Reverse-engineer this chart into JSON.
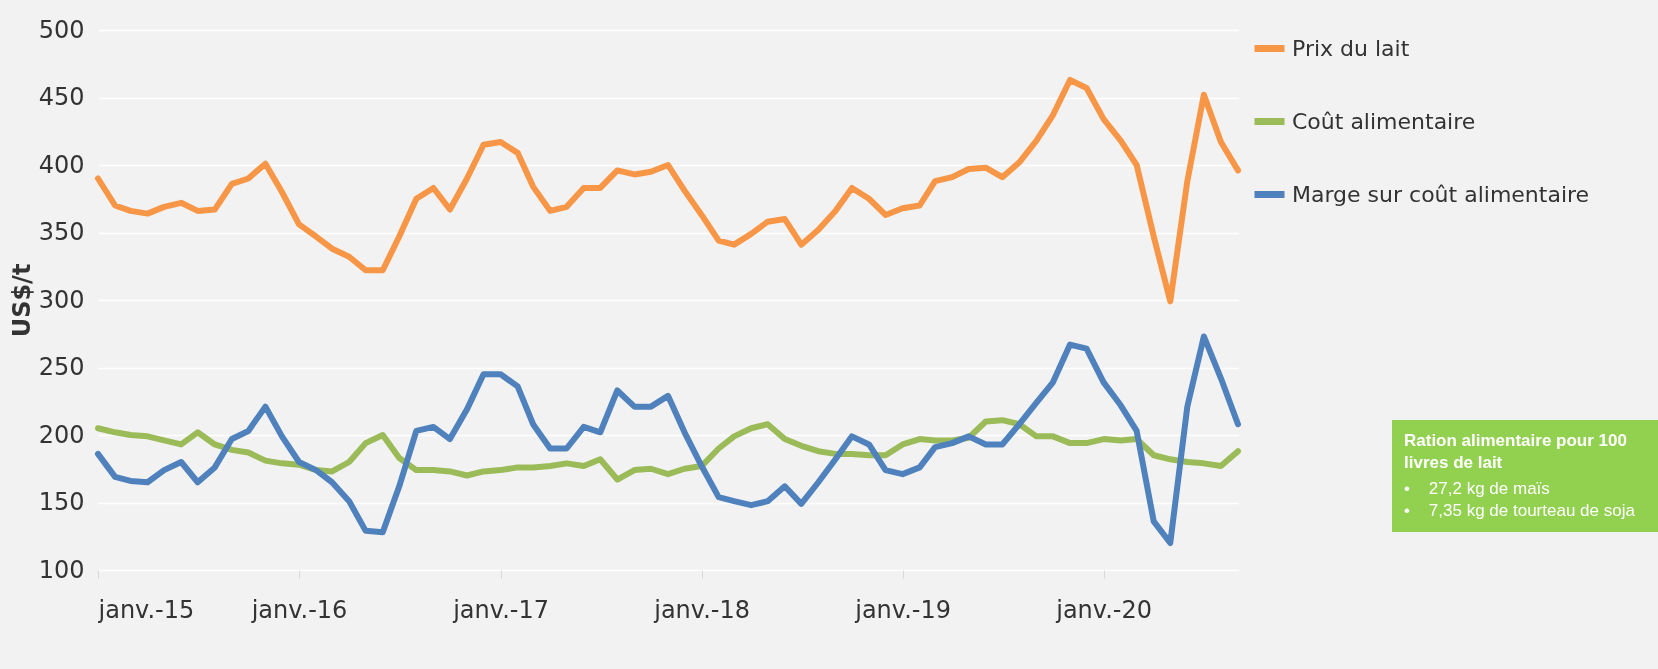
{
  "chart_data": {
    "type": "line",
    "ylabel": "US$/t",
    "x": [
      "2015-01",
      "2015-02",
      "2015-03",
      "2015-04",
      "2015-05",
      "2015-06",
      "2015-07",
      "2015-08",
      "2015-09",
      "2015-10",
      "2015-11",
      "2015-12",
      "2016-01",
      "2016-02",
      "2016-03",
      "2016-04",
      "2016-05",
      "2016-06",
      "2016-07",
      "2016-08",
      "2016-09",
      "2016-10",
      "2016-11",
      "2016-12",
      "2017-01",
      "2017-02",
      "2017-03",
      "2017-04",
      "2017-05",
      "2017-06",
      "2017-07",
      "2017-08",
      "2017-09",
      "2017-10",
      "2017-11",
      "2017-12",
      "2018-01",
      "2018-02",
      "2018-03",
      "2018-04",
      "2018-05",
      "2018-06",
      "2018-07",
      "2018-08",
      "2018-09",
      "2018-10",
      "2018-11",
      "2018-12",
      "2019-01",
      "2019-02",
      "2019-03",
      "2019-04",
      "2019-05",
      "2019-06",
      "2019-07",
      "2019-08",
      "2019-09",
      "2019-10",
      "2019-11",
      "2019-12",
      "2020-01",
      "2020-02",
      "2020-03",
      "2020-04",
      "2020-05",
      "2020-06",
      "2020-07",
      "2020-08",
      "2020-09"
    ],
    "series": [
      {
        "name": "Prix du lait",
        "color": "#f79646",
        "values": [
          390,
          370,
          366,
          364,
          369,
          372,
          366,
          367,
          386,
          390,
          401,
          380,
          356,
          347,
          338,
          332,
          322,
          322,
          347,
          375,
          383,
          367,
          390,
          415,
          417,
          409,
          384,
          366,
          369,
          383,
          383,
          396,
          393,
          395,
          400,
          381,
          363,
          344,
          341,
          349,
          358,
          360,
          341,
          352,
          366,
          383,
          375,
          363,
          368,
          370,
          388,
          391,
          397,
          398,
          391,
          402,
          418,
          437,
          463,
          457,
          434,
          418,
          400,
          347,
          299,
          388,
          452,
          417,
          396
        ]
      },
      {
        "name": "Coût alimentaire",
        "color": "#9bbb59",
        "values": [
          205,
          202,
          200,
          199,
          196,
          193,
          202,
          193,
          189,
          187,
          181,
          179,
          178,
          174,
          173,
          180,
          194,
          200,
          183,
          174,
          174,
          173,
          170,
          173,
          174,
          176,
          176,
          177,
          179,
          177,
          182,
          167,
          174,
          175,
          171,
          175,
          177,
          190,
          199,
          205,
          208,
          197,
          192,
          188,
          186,
          186,
          185,
          185,
          193,
          197,
          196,
          196,
          198,
          210,
          211,
          208,
          199,
          199,
          194,
          194,
          197,
          196,
          197,
          185,
          182,
          180,
          179,
          177,
          188
        ]
      },
      {
        "name": "Marge sur coût alimentaire",
        "color": "#4f81bd",
        "values": [
          186,
          169,
          166,
          165,
          174,
          180,
          165,
          176,
          197,
          203,
          221,
          199,
          180,
          174,
          165,
          151,
          129,
          128,
          162,
          203,
          206,
          197,
          219,
          245,
          245,
          236,
          208,
          190,
          190,
          206,
          202,
          233,
          221,
          221,
          229,
          202,
          177,
          154,
          151,
          148,
          151,
          162,
          149,
          165,
          182,
          199,
          193,
          174,
          171,
          176,
          191,
          194,
          199,
          193,
          193,
          208,
          224,
          239,
          267,
          264,
          239,
          222,
          203,
          136,
          120,
          221,
          273,
          242,
          208
        ]
      }
    ],
    "xlim": [
      "2015-01",
      "2020-09"
    ],
    "xticks": [
      {
        "value": "2015-01",
        "label": "janv.-15"
      },
      {
        "value": "2016-01",
        "label": "janv.-16"
      },
      {
        "value": "2017-01",
        "label": "janv.-17"
      },
      {
        "value": "2018-01",
        "label": "janv.-18"
      },
      {
        "value": "2019-01",
        "label": "janv.-19"
      },
      {
        "value": "2020-01",
        "label": "janv.-20"
      }
    ],
    "ylim": [
      100,
      500
    ],
    "yticks": [
      100,
      150,
      200,
      250,
      300,
      350,
      400,
      450,
      500
    ],
    "grid": "y",
    "legend": "right",
    "line_style": "solid",
    "annotations": [
      "Ration alimentaire pour 100 livres de lait",
      "•    27,2 kg de maïs",
      "•    7,35 kg de tourteau de soja"
    ]
  }
}
